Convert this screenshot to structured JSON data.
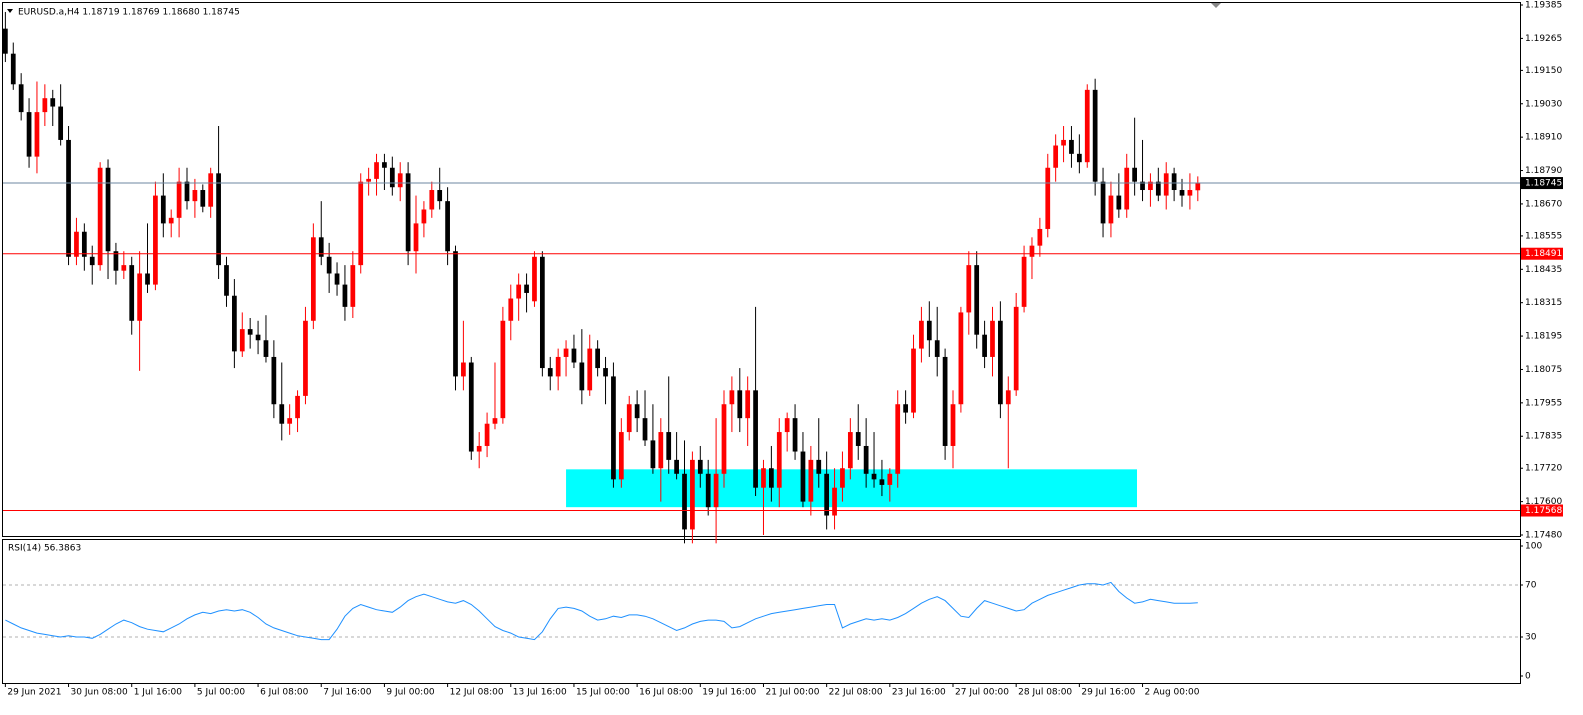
{
  "chart_data": [
    {
      "type": "candlestick",
      "title": "EURUSD.a,H4  1.18719 1.18769 1.18680 1.18745",
      "up_color": "#ff0000",
      "down_color": "#000000",
      "ylim": [
        1.1748,
        1.19385
      ],
      "xlim": [
        -0.3,
        191.8
      ],
      "yticks": [
        {
          "value": 1.19385,
          "label": "1.19385"
        },
        {
          "value": 1.19265,
          "label": "1.19265"
        },
        {
          "value": 1.1915,
          "label": "1.19150"
        },
        {
          "value": 1.1903,
          "label": "1.19030"
        },
        {
          "value": 1.1891,
          "label": "1.18910"
        },
        {
          "value": 1.1879,
          "label": "1.18790"
        },
        {
          "value": 1.1867,
          "label": "1.18670"
        },
        {
          "value": 1.18555,
          "label": "1.18555"
        },
        {
          "value": 1.18435,
          "label": "1.18435"
        },
        {
          "value": 1.18315,
          "label": "1.18315"
        },
        {
          "value": 1.18195,
          "label": "1.18195"
        },
        {
          "value": 1.18075,
          "label": "1.18075"
        },
        {
          "value": 1.17955,
          "label": "1.17955"
        },
        {
          "value": 1.17835,
          "label": "1.17835"
        },
        {
          "value": 1.1772,
          "label": "1.17720"
        },
        {
          "value": 1.176,
          "label": "1.17600"
        },
        {
          "value": 1.1748,
          "label": "1.17480"
        }
      ],
      "hlines": [
        {
          "value": 1.18745,
          "label": "1.18745",
          "color": "#6d87a0",
          "label_color": "#000000"
        },
        {
          "value": 1.18491,
          "label": "1.18491",
          "color": "#ff0000",
          "label_color": "#ff0000"
        },
        {
          "value": 1.17568,
          "label": "1.17568",
          "color": "#ff0000",
          "label_color": "#ff0000"
        }
      ],
      "zones": [
        {
          "from": 1.1758,
          "to": 1.17716,
          "start": 71,
          "end": 143.3,
          "color": "#00ffff"
        }
      ],
      "candles": [
        [
          1.193,
          1.1936,
          1.1918,
          1.1921
        ],
        [
          1.1921,
          1.1925,
          1.1908,
          1.191
        ],
        [
          1.191,
          1.1914,
          1.1897,
          1.19
        ],
        [
          1.19,
          1.1905,
          1.188,
          1.1884
        ],
        [
          1.1884,
          1.1911,
          1.1878,
          1.19
        ],
        [
          1.19,
          1.191,
          1.1895,
          1.1905
        ],
        [
          1.1905,
          1.1908,
          1.1895,
          1.1902
        ],
        [
          1.1902,
          1.191,
          1.1888,
          1.189
        ],
        [
          1.189,
          1.1895,
          1.1845,
          1.1848
        ],
        [
          1.1848,
          1.1862,
          1.1845,
          1.1857
        ],
        [
          1.1857,
          1.186,
          1.1843,
          1.1848
        ],
        [
          1.1848,
          1.1852,
          1.1838,
          1.1845
        ],
        [
          1.1845,
          1.1882,
          1.1843,
          1.188
        ],
        [
          1.188,
          1.1883,
          1.184,
          1.185
        ],
        [
          1.185,
          1.1853,
          1.1838,
          1.1843
        ],
        [
          1.1843,
          1.185,
          1.184,
          1.1845
        ],
        [
          1.1845,
          1.1848,
          1.182,
          1.1825
        ],
        [
          1.1825,
          1.185,
          1.1807,
          1.1842
        ],
        [
          1.1842,
          1.186,
          1.1835,
          1.1838
        ],
        [
          1.1838,
          1.1875,
          1.1836,
          1.187
        ],
        [
          1.187,
          1.1878,
          1.1855,
          1.186
        ],
        [
          1.186,
          1.1865,
          1.1855,
          1.1862
        ],
        [
          1.1862,
          1.188,
          1.1855,
          1.1875
        ],
        [
          1.1875,
          1.188,
          1.1865,
          1.1868
        ],
        [
          1.1868,
          1.1876,
          1.1862,
          1.1872
        ],
        [
          1.1872,
          1.1874,
          1.1864,
          1.1866
        ],
        [
          1.1866,
          1.188,
          1.1862,
          1.1878
        ],
        [
          1.1878,
          1.1895,
          1.184,
          1.1845
        ],
        [
          1.1845,
          1.1848,
          1.183,
          1.1834
        ],
        [
          1.1834,
          1.184,
          1.1808,
          1.1814
        ],
        [
          1.1814,
          1.1828,
          1.1812,
          1.1822
        ],
        [
          1.1822,
          1.1826,
          1.1815,
          1.182
        ],
        [
          1.182,
          1.1825,
          1.1813,
          1.1818
        ],
        [
          1.1818,
          1.1827,
          1.181,
          1.1812
        ],
        [
          1.1812,
          1.1818,
          1.179,
          1.1795
        ],
        [
          1.1795,
          1.181,
          1.1782,
          1.1788
        ],
        [
          1.1788,
          1.1795,
          1.1784,
          1.179
        ],
        [
          1.179,
          1.18,
          1.1785,
          1.1798
        ],
        [
          1.1798,
          1.183,
          1.1795,
          1.1825
        ],
        [
          1.1825,
          1.186,
          1.1822,
          1.1855
        ],
        [
          1.1855,
          1.1868,
          1.1845,
          1.1848
        ],
        [
          1.1848,
          1.1853,
          1.1835,
          1.1842
        ],
        [
          1.1842,
          1.1846,
          1.1834,
          1.1838
        ],
        [
          1.1838,
          1.1845,
          1.1825,
          1.183
        ],
        [
          1.183,
          1.185,
          1.1826,
          1.1845
        ],
        [
          1.1845,
          1.1878,
          1.1842,
          1.1875
        ],
        [
          1.1875,
          1.188,
          1.187,
          1.1876
        ],
        [
          1.1876,
          1.1885,
          1.187,
          1.1882
        ],
        [
          1.1882,
          1.1885,
          1.1872,
          1.188
        ],
        [
          1.188,
          1.1884,
          1.187,
          1.1873
        ],
        [
          1.1873,
          1.1882,
          1.1868,
          1.1878
        ],
        [
          1.1878,
          1.1882,
          1.1845,
          1.185
        ],
        [
          1.185,
          1.187,
          1.1842,
          1.186
        ],
        [
          1.186,
          1.1868,
          1.1855,
          1.1865
        ],
        [
          1.1865,
          1.1875,
          1.1862,
          1.1872
        ],
        [
          1.1872,
          1.188,
          1.1865,
          1.1868
        ],
        [
          1.1868,
          1.1873,
          1.1845,
          1.185
        ],
        [
          1.185,
          1.1852,
          1.18,
          1.1805
        ],
        [
          1.1805,
          1.1825,
          1.18,
          1.181
        ],
        [
          1.181,
          1.1812,
          1.1775,
          1.1778
        ],
        [
          1.1778,
          1.1785,
          1.1772,
          1.178
        ],
        [
          1.178,
          1.1792,
          1.1776,
          1.1788
        ],
        [
          1.1788,
          1.181,
          1.1786,
          1.179
        ],
        [
          1.179,
          1.183,
          1.1788,
          1.1825
        ],
        [
          1.1825,
          1.1838,
          1.1818,
          1.1833
        ],
        [
          1.1833,
          1.1842,
          1.1825,
          1.1838
        ],
        [
          1.1838,
          1.1842,
          1.1828,
          1.1835
        ],
        [
          1.1832,
          1.185,
          1.183,
          1.1848
        ],
        [
          1.1848,
          1.185,
          1.1805,
          1.1808
        ],
        [
          1.1808,
          1.1812,
          1.18,
          1.1805
        ],
        [
          1.1805,
          1.1815,
          1.18,
          1.1812
        ],
        [
          1.1812,
          1.1818,
          1.1805,
          1.1815
        ],
        [
          1.1815,
          1.182,
          1.1808,
          1.181
        ],
        [
          1.181,
          1.1822,
          1.1795,
          1.18
        ],
        [
          1.18,
          1.182,
          1.1798,
          1.1815
        ],
        [
          1.1815,
          1.1818,
          1.1805,
          1.1808
        ],
        [
          1.1808,
          1.1812,
          1.1795,
          1.1805
        ],
        [
          1.1805,
          1.181,
          1.1765,
          1.1768
        ],
        [
          1.1768,
          1.179,
          1.1765,
          1.1785
        ],
        [
          1.1785,
          1.1798,
          1.1782,
          1.1795
        ],
        [
          1.1795,
          1.18,
          1.1785,
          1.179
        ],
        [
          1.179,
          1.18,
          1.178,
          1.1782
        ],
        [
          1.1782,
          1.1795,
          1.177,
          1.1772
        ],
        [
          1.1772,
          1.179,
          1.176,
          1.1785
        ],
        [
          1.1785,
          1.1805,
          1.177,
          1.1775
        ],
        [
          1.1775,
          1.1785,
          1.1768,
          1.177
        ],
        [
          1.177,
          1.1782,
          1.1745,
          1.175
        ],
        [
          1.175,
          1.1778,
          1.1745,
          1.1775
        ],
        [
          1.1775,
          1.178,
          1.1765,
          1.177
        ],
        [
          1.177,
          1.1775,
          1.1755,
          1.1758
        ],
        [
          1.1758,
          1.179,
          1.1745,
          1.177
        ],
        [
          1.177,
          1.18,
          1.1765,
          1.1795
        ],
        [
          1.1795,
          1.1805,
          1.1785,
          1.18
        ],
        [
          1.18,
          1.1808,
          1.1785,
          1.179
        ],
        [
          1.179,
          1.1805,
          1.178,
          1.18
        ],
        [
          1.18,
          1.183,
          1.1762,
          1.1765
        ],
        [
          1.1765,
          1.1775,
          1.1748,
          1.1772
        ],
        [
          1.1772,
          1.178,
          1.176,
          1.1765
        ],
        [
          1.1765,
          1.179,
          1.1758,
          1.1785
        ],
        [
          1.1785,
          1.1792,
          1.1778,
          1.179
        ],
        [
          1.179,
          1.1795,
          1.1775,
          1.1778
        ],
        [
          1.1778,
          1.1785,
          1.1758,
          1.176
        ],
        [
          1.176,
          1.178,
          1.1755,
          1.1775
        ],
        [
          1.1775,
          1.179,
          1.1765,
          1.177
        ],
        [
          1.177,
          1.1778,
          1.175,
          1.1755
        ],
        [
          1.1755,
          1.1772,
          1.175,
          1.1765
        ],
        [
          1.1765,
          1.1778,
          1.176,
          1.1772
        ],
        [
          1.1772,
          1.179,
          1.1768,
          1.1785
        ],
        [
          1.1785,
          1.1795,
          1.1775,
          1.178
        ],
        [
          1.178,
          1.179,
          1.1765,
          1.177
        ],
        [
          1.177,
          1.1785,
          1.1765,
          1.1768
        ],
        [
          1.1768,
          1.1775,
          1.1762,
          1.1766
        ],
        [
          1.1766,
          1.1772,
          1.176,
          1.177
        ],
        [
          1.177,
          1.18,
          1.1765,
          1.1795
        ],
        [
          1.1795,
          1.18,
          1.1788,
          1.1792
        ],
        [
          1.1792,
          1.182,
          1.179,
          1.1815
        ],
        [
          1.1815,
          1.183,
          1.181,
          1.1825
        ],
        [
          1.1825,
          1.1832,
          1.1812,
          1.1818
        ],
        [
          1.1818,
          1.183,
          1.1805,
          1.1812
        ],
        [
          1.1812,
          1.1815,
          1.1775,
          1.178
        ],
        [
          1.178,
          1.18,
          1.1772,
          1.1795
        ],
        [
          1.1795,
          1.183,
          1.1792,
          1.1828
        ],
        [
          1.1828,
          1.185,
          1.182,
          1.1845
        ],
        [
          1.1845,
          1.185,
          1.1815,
          1.182
        ],
        [
          1.182,
          1.1825,
          1.1808,
          1.1812
        ],
        [
          1.1812,
          1.183,
          1.1805,
          1.1825
        ],
        [
          1.1825,
          1.1832,
          1.179,
          1.1795
        ],
        [
          1.1795,
          1.1805,
          1.1772,
          1.18
        ],
        [
          1.18,
          1.1835,
          1.1798,
          1.183
        ],
        [
          1.183,
          1.1852,
          1.1828,
          1.1848
        ],
        [
          1.1848,
          1.1855,
          1.184,
          1.1852
        ],
        [
          1.1852,
          1.1862,
          1.1848,
          1.1858
        ],
        [
          1.1858,
          1.1885,
          1.1855,
          1.188
        ],
        [
          1.188,
          1.1892,
          1.1875,
          1.1888
        ],
        [
          1.1888,
          1.1895,
          1.1882,
          1.189
        ],
        [
          1.189,
          1.1895,
          1.188,
          1.1885
        ],
        [
          1.1885,
          1.1892,
          1.1878,
          1.1882
        ],
        [
          1.1882,
          1.191,
          1.188,
          1.1908
        ],
        [
          1.1908,
          1.1912,
          1.187,
          1.1875
        ],
        [
          1.1875,
          1.188,
          1.1855,
          1.186
        ],
        [
          1.186,
          1.1875,
          1.1855,
          1.187
        ],
        [
          1.187,
          1.1878,
          1.1862,
          1.1865
        ],
        [
          1.1865,
          1.1885,
          1.1862,
          1.188
        ],
        [
          1.188,
          1.1898,
          1.187,
          1.1875
        ],
        [
          1.1875,
          1.189,
          1.1868,
          1.1872
        ],
        [
          1.1872,
          1.1878,
          1.1866,
          1.1875
        ],
        [
          1.1875,
          1.188,
          1.1868,
          1.187
        ],
        [
          1.187,
          1.1882,
          1.1865,
          1.1878
        ],
        [
          1.1878,
          1.188,
          1.1868,
          1.1872
        ],
        [
          1.1872,
          1.1876,
          1.1866,
          1.187
        ],
        [
          1.187,
          1.1878,
          1.1865,
          1.1872
        ],
        [
          1.18719,
          1.18769,
          1.1868,
          1.18745
        ]
      ]
    },
    {
      "type": "line",
      "title": "RSI(14) 56.3863",
      "color": "#1e90ff",
      "ylim": [
        0,
        100
      ],
      "yticks": [
        0,
        30,
        70,
        100
      ],
      "levels": [
        30,
        70
      ],
      "xlim": [
        -0.3,
        191.8
      ],
      "xticks": [
        {
          "value": 0,
          "label": "29 Jun 2021"
        },
        {
          "value": 8,
          "label": "30 Jun 08:00"
        },
        {
          "value": 16,
          "label": "1 Jul 16:00"
        },
        {
          "value": 24,
          "label": "5 Jul 00:00"
        },
        {
          "value": 32,
          "label": "6 Jul 08:00"
        },
        {
          "value": 40,
          "label": "7 Jul 16:00"
        },
        {
          "value": 48,
          "label": "9 Jul 00:00"
        },
        {
          "value": 56,
          "label": "12 Jul 08:00"
        },
        {
          "value": 64,
          "label": "13 Jul 16:00"
        },
        {
          "value": 72,
          "label": "15 Jul 00:00"
        },
        {
          "value": 80,
          "label": "16 Jul 08:00"
        },
        {
          "value": 88,
          "label": "19 Jul 16:00"
        },
        {
          "value": 96,
          "label": "21 Jul 00:00"
        },
        {
          "value": 104,
          "label": "22 Jul 08:00"
        },
        {
          "value": 112,
          "label": "23 Jul 16:00"
        },
        {
          "value": 120,
          "label": "27 Jul 00:00"
        },
        {
          "value": 128,
          "label": "28 Jul 08:00"
        },
        {
          "value": 136,
          "label": "29 Jul 16:00"
        },
        {
          "value": 144,
          "label": "2 Aug 00:00"
        }
      ],
      "values": [
        43,
        40,
        37,
        35,
        33,
        32,
        31,
        30,
        31,
        30,
        30,
        29,
        32,
        36,
        40,
        43,
        41,
        38,
        36,
        35,
        34,
        37,
        40,
        44,
        47,
        49,
        48,
        50,
        51,
        50,
        51,
        49,
        45,
        40,
        37,
        35,
        33,
        31,
        30,
        29,
        28,
        28,
        36,
        46,
        52,
        55,
        53,
        51,
        50,
        49,
        53,
        58,
        61,
        63,
        61,
        59,
        57,
        56,
        58,
        55,
        50,
        44,
        38,
        35,
        33,
        30,
        29,
        28,
        34,
        44,
        52,
        53,
        52,
        50,
        46,
        43,
        44,
        46,
        45,
        47,
        47,
        46,
        44,
        41,
        38,
        35,
        37,
        40,
        42,
        43,
        43,
        42,
        37,
        38,
        41,
        44,
        46,
        48,
        49,
        50,
        51,
        52,
        53,
        54,
        55,
        55,
        37,
        40,
        42,
        44,
        43,
        44,
        43,
        45,
        48,
        52,
        56,
        59,
        61,
        58,
        52,
        46,
        45,
        52,
        58,
        56,
        54,
        52,
        50,
        51,
        56,
        59,
        62,
        64,
        66,
        68,
        70,
        71,
        71,
        70,
        72,
        65,
        60,
        56,
        57,
        59,
        58,
        57,
        56,
        56,
        56,
        56.3863
      ]
    }
  ]
}
